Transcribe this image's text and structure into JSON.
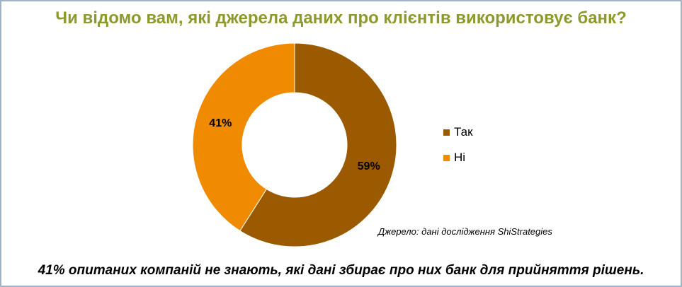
{
  "chart_data": {
    "type": "pie",
    "title": "Чи відомо вам, які джерела даних про клієнтів використовує  банк?",
    "categories": [
      "Так",
      "Ні"
    ],
    "values": [
      59,
      41
    ],
    "data_labels": [
      "59%",
      "41%"
    ],
    "colors": [
      "#9b5a00",
      "#f08a00"
    ],
    "donut": true,
    "legend_position": "right"
  },
  "source": "Джерело: дані дослідження ShiStrategies",
  "conclusion": "41% опитаних компаній не знають, які дані збирає про них банк для прийняття рішень."
}
